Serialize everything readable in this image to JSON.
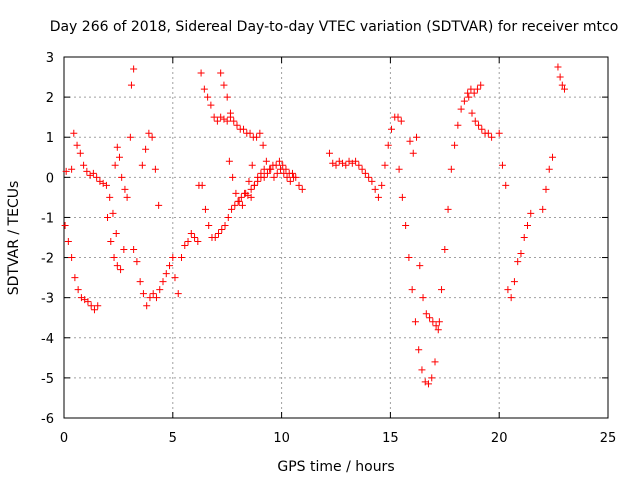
{
  "chart_data": {
    "type": "scatter",
    "title": "Day 266 of 2018, Sidereal Day-to-day VTEC variation (SDTVAR) for receiver mtco",
    "xlabel": "GPS time / hours",
    "ylabel": "SDTVAR / TECUs",
    "xlim": [
      0,
      25
    ],
    "ylim": [
      -6,
      3
    ],
    "x_ticks": [
      0,
      5,
      10,
      15,
      20,
      25
    ],
    "y_ticks": [
      -6,
      -5,
      -4,
      -3,
      -2,
      -1,
      0,
      1,
      2,
      3
    ],
    "x_tick_labels": [
      "0",
      "5",
      "10",
      "15",
      "20",
      "25"
    ],
    "y_tick_labels": [
      "-6",
      "-5",
      "-4",
      "-3",
      "-2",
      "-1",
      "0",
      "1",
      "2",
      "3"
    ],
    "grid": true,
    "marker": "+",
    "series_color": "#ff0000",
    "series": [
      {
        "name": "s1",
        "x": [
          0.05,
          0.2,
          0.35,
          0.5,
          0.65,
          0.8,
          0.95,
          1.1,
          1.25,
          1.4,
          1.55
        ],
        "y": [
          -1.2,
          -1.6,
          -2.0,
          -2.5,
          -2.8,
          -3.0,
          -3.05,
          -3.1,
          -3.2,
          -3.3,
          -3.2
        ]
      },
      {
        "name": "s2",
        "x": [
          0.1,
          0.35,
          0.45,
          0.6,
          0.75,
          0.9,
          1.05,
          1.2,
          1.35,
          1.5,
          1.65,
          1.8,
          1.95,
          2.1,
          2.25,
          2.4
        ],
        "y": [
          0.15,
          0.2,
          1.1,
          0.8,
          0.6,
          0.3,
          0.15,
          0.05,
          0.1,
          0.0,
          -0.1,
          -0.15,
          -0.2,
          -0.5,
          -0.9,
          -1.4
        ]
      },
      {
        "name": "s3",
        "x": [
          2.0,
          2.15,
          2.3,
          2.45,
          2.6,
          2.75,
          2.9,
          3.05,
          3.1,
          3.2
        ],
        "y": [
          -1.0,
          -1.6,
          -2.0,
          -2.2,
          -2.3,
          -1.8,
          -0.5,
          1.0,
          2.3,
          2.7
        ]
      },
      {
        "name": "s4",
        "x": [
          2.35,
          2.45,
          2.55,
          2.65,
          2.8
        ],
        "y": [
          0.3,
          0.75,
          0.5,
          0.0,
          -0.3
        ]
      },
      {
        "name": "s5",
        "x": [
          3.2,
          3.35,
          3.5,
          3.65,
          3.8,
          3.95,
          4.1,
          4.25,
          4.4,
          4.55,
          4.7,
          4.85,
          5.0
        ],
        "y": [
          -1.8,
          -2.1,
          -2.6,
          -2.9,
          -3.2,
          -3.0,
          -2.9,
          -3.0,
          -2.8,
          -2.6,
          -2.4,
          -2.2,
          -2.0
        ]
      },
      {
        "name": "s6",
        "x": [
          3.6,
          3.75,
          3.9,
          4.05,
          4.2,
          4.35
        ],
        "y": [
          0.3,
          0.7,
          1.1,
          1.0,
          0.2,
          -0.7
        ]
      },
      {
        "name": "s7",
        "x": [
          5.1,
          5.25,
          5.4,
          5.55,
          5.7,
          5.85,
          6.0,
          6.15
        ],
        "y": [
          -2.5,
          -2.9,
          -2.0,
          -1.7,
          -1.6,
          -1.4,
          -1.5,
          -1.6
        ]
      },
      {
        "name": "s8",
        "x": [
          6.3,
          6.45,
          6.6,
          6.75,
          6.9,
          7.05,
          7.2,
          7.35,
          7.5,
          7.65
        ],
        "y": [
          2.6,
          2.2,
          2.0,
          1.8,
          1.5,
          1.4,
          1.5,
          1.45,
          1.4,
          1.5
        ]
      },
      {
        "name": "s9",
        "x": [
          6.2,
          6.35,
          6.5,
          6.65,
          6.8,
          6.95,
          7.1,
          7.25,
          7.4,
          7.55,
          7.7,
          7.85,
          8.0,
          8.15,
          8.3,
          8.45,
          8.6,
          8.75,
          8.9,
          9.05,
          9.2
        ],
        "y": [
          -0.2,
          -0.2,
          -0.8,
          -1.2,
          -1.5,
          -1.5,
          -1.4,
          -1.3,
          -1.2,
          -1.0,
          -0.8,
          -0.7,
          -0.6,
          -0.5,
          -0.4,
          -0.45,
          -0.3,
          -0.2,
          -0.1,
          0.0,
          0.0
        ]
      },
      {
        "name": "s10",
        "x": [
          7.2,
          7.35,
          7.5,
          7.65,
          7.8,
          7.95,
          8.1,
          8.25,
          8.4,
          8.55,
          8.7,
          8.85,
          9.0,
          9.15,
          9.3,
          9.45,
          9.6,
          9.75,
          9.9,
          10.05,
          10.2,
          10.35,
          10.5,
          10.65,
          10.8,
          10.95
        ],
        "y": [
          2.6,
          2.3,
          2.0,
          1.6,
          1.4,
          1.3,
          1.2,
          1.2,
          1.1,
          1.1,
          1.0,
          1.0,
          1.1,
          0.8,
          0.4,
          0.2,
          0.3,
          0.3,
          0.4,
          0.3,
          0.2,
          0.1,
          0.1,
          0.0,
          -0.2,
          -0.3
        ]
      },
      {
        "name": "s11",
        "x": [
          7.6,
          7.75,
          7.9,
          8.05,
          8.2,
          8.35,
          8.5,
          8.65
        ],
        "y": [
          0.4,
          0.0,
          -0.4,
          -0.6,
          -0.7,
          -0.4,
          -0.1,
          0.3
        ]
      },
      {
        "name": "s12",
        "x": [
          8.6,
          8.75,
          8.9,
          9.05,
          9.2,
          9.35,
          9.5,
          9.65,
          9.8,
          9.95,
          10.1,
          10.25,
          10.4,
          10.55
        ],
        "y": [
          -0.5,
          -0.2,
          0.0,
          0.1,
          0.2,
          0.1,
          0.2,
          0.0,
          0.1,
          0.2,
          0.1,
          0.0,
          -0.1,
          0.0
        ]
      },
      {
        "name": "s13",
        "x": [
          12.2,
          12.35,
          12.5,
          12.65,
          12.8,
          12.95,
          13.1,
          13.25,
          13.4,
          13.55,
          13.7,
          13.85,
          14.0,
          14.15,
          14.3,
          14.45,
          14.6,
          14.75,
          14.9,
          15.05,
          15.2,
          15.35,
          15.5
        ],
        "y": [
          0.6,
          0.35,
          0.3,
          0.4,
          0.35,
          0.3,
          0.4,
          0.35,
          0.4,
          0.3,
          0.2,
          0.1,
          0.0,
          -0.1,
          -0.3,
          -0.5,
          -0.2,
          0.3,
          0.8,
          1.2,
          1.5,
          1.5,
          1.4
        ]
      },
      {
        "name": "s14",
        "x": [
          15.4,
          15.55,
          15.7,
          15.85,
          16.0,
          16.15,
          16.3,
          16.45,
          16.6,
          16.75,
          16.9,
          17.05,
          17.2,
          17.35,
          17.5,
          17.65,
          17.8,
          17.95,
          18.1,
          18.25,
          18.4,
          18.55,
          18.7,
          18.85,
          19.0,
          19.15
        ],
        "y": [
          0.2,
          -0.5,
          -1.2,
          -2.0,
          -2.8,
          -3.6,
          -4.3,
          -4.8,
          -5.1,
          -5.15,
          -5.0,
          -4.6,
          -3.8,
          -2.8,
          -1.8,
          -0.8,
          0.2,
          0.8,
          1.3,
          1.7,
          1.9,
          2.1,
          2.2,
          2.1,
          2.2,
          2.3
        ]
      },
      {
        "name": "s15",
        "x": [
          15.9,
          16.05,
          16.2,
          16.35,
          16.5,
          16.65,
          16.8,
          16.95,
          17.1,
          17.25
        ],
        "y": [
          0.9,
          0.6,
          1.0,
          -2.2,
          -3.0,
          -3.4,
          -3.5,
          -3.6,
          -3.7,
          -3.6
        ]
      },
      {
        "name": "s16",
        "x": [
          18.6,
          18.75,
          18.9,
          19.05,
          19.2,
          19.35,
          19.5,
          19.65
        ],
        "y": [
          2.0,
          1.6,
          1.4,
          1.3,
          1.2,
          1.1,
          1.1,
          1.0
        ]
      },
      {
        "name": "s17",
        "x": [
          20.0,
          20.15,
          20.3
        ],
        "y": [
          1.1,
          0.3,
          -0.2
        ]
      },
      {
        "name": "s18",
        "x": [
          20.4,
          20.55,
          20.7,
          20.85,
          21.0,
          21.15,
          21.3,
          21.45
        ],
        "y": [
          -2.8,
          -3.0,
          -2.6,
          -2.1,
          -1.9,
          -1.5,
          -1.2,
          -0.9
        ]
      },
      {
        "name": "s19",
        "x": [
          22.0,
          22.15,
          22.3,
          22.45
        ],
        "y": [
          -0.8,
          -0.3,
          0.2,
          0.5
        ]
      },
      {
        "name": "s20",
        "x": [
          22.7,
          22.8,
          22.9,
          23.0
        ],
        "y": [
          2.75,
          2.5,
          2.3,
          2.2
        ]
      }
    ]
  }
}
